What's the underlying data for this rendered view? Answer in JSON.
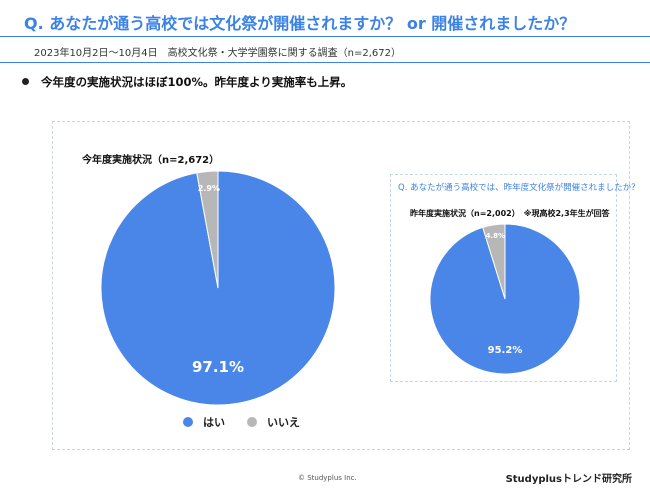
{
  "header": {
    "question": "Q. あなたが通う高校では文化祭が開催されますか？ or 開催されましたか？",
    "survey": "2023年10月2日～10月4日　高校文化祭・大学学園祭に関する調査（n=2,672）"
  },
  "summary": {
    "bullet": "今年度の実施状況はほぼ100%。昨年度より実施率も上昇。"
  },
  "colors": {
    "accent": "#3b82e8",
    "yes": "#4a86e8",
    "no": "#b7b7b7"
  },
  "chart_data": [
    {
      "type": "pie",
      "title": "今年度実施状況（n=2,672）",
      "categories": [
        "はい",
        "いいえ"
      ],
      "values": [
        97.1,
        2.9
      ],
      "value_labels": [
        "97.1%",
        "2.9%"
      ],
      "legend": "bottom"
    },
    {
      "type": "pie",
      "subtitle": "Q. あなたが通う高校では、昨年度文化祭が開催されましたか？",
      "title": "昨年度実施状況（n=2,002）　※現高校2,3年生が回答",
      "categories": [
        "はい",
        "いいえ"
      ],
      "values": [
        95.2,
        4.8
      ],
      "value_labels": [
        "95.2%",
        "4.8%"
      ]
    }
  ],
  "legend": {
    "items": [
      {
        "label": "はい"
      },
      {
        "label": "いいえ"
      }
    ]
  },
  "footer": {
    "copyright": "© Studyplus Inc.",
    "brand": "Studyplusトレンド研究所"
  }
}
